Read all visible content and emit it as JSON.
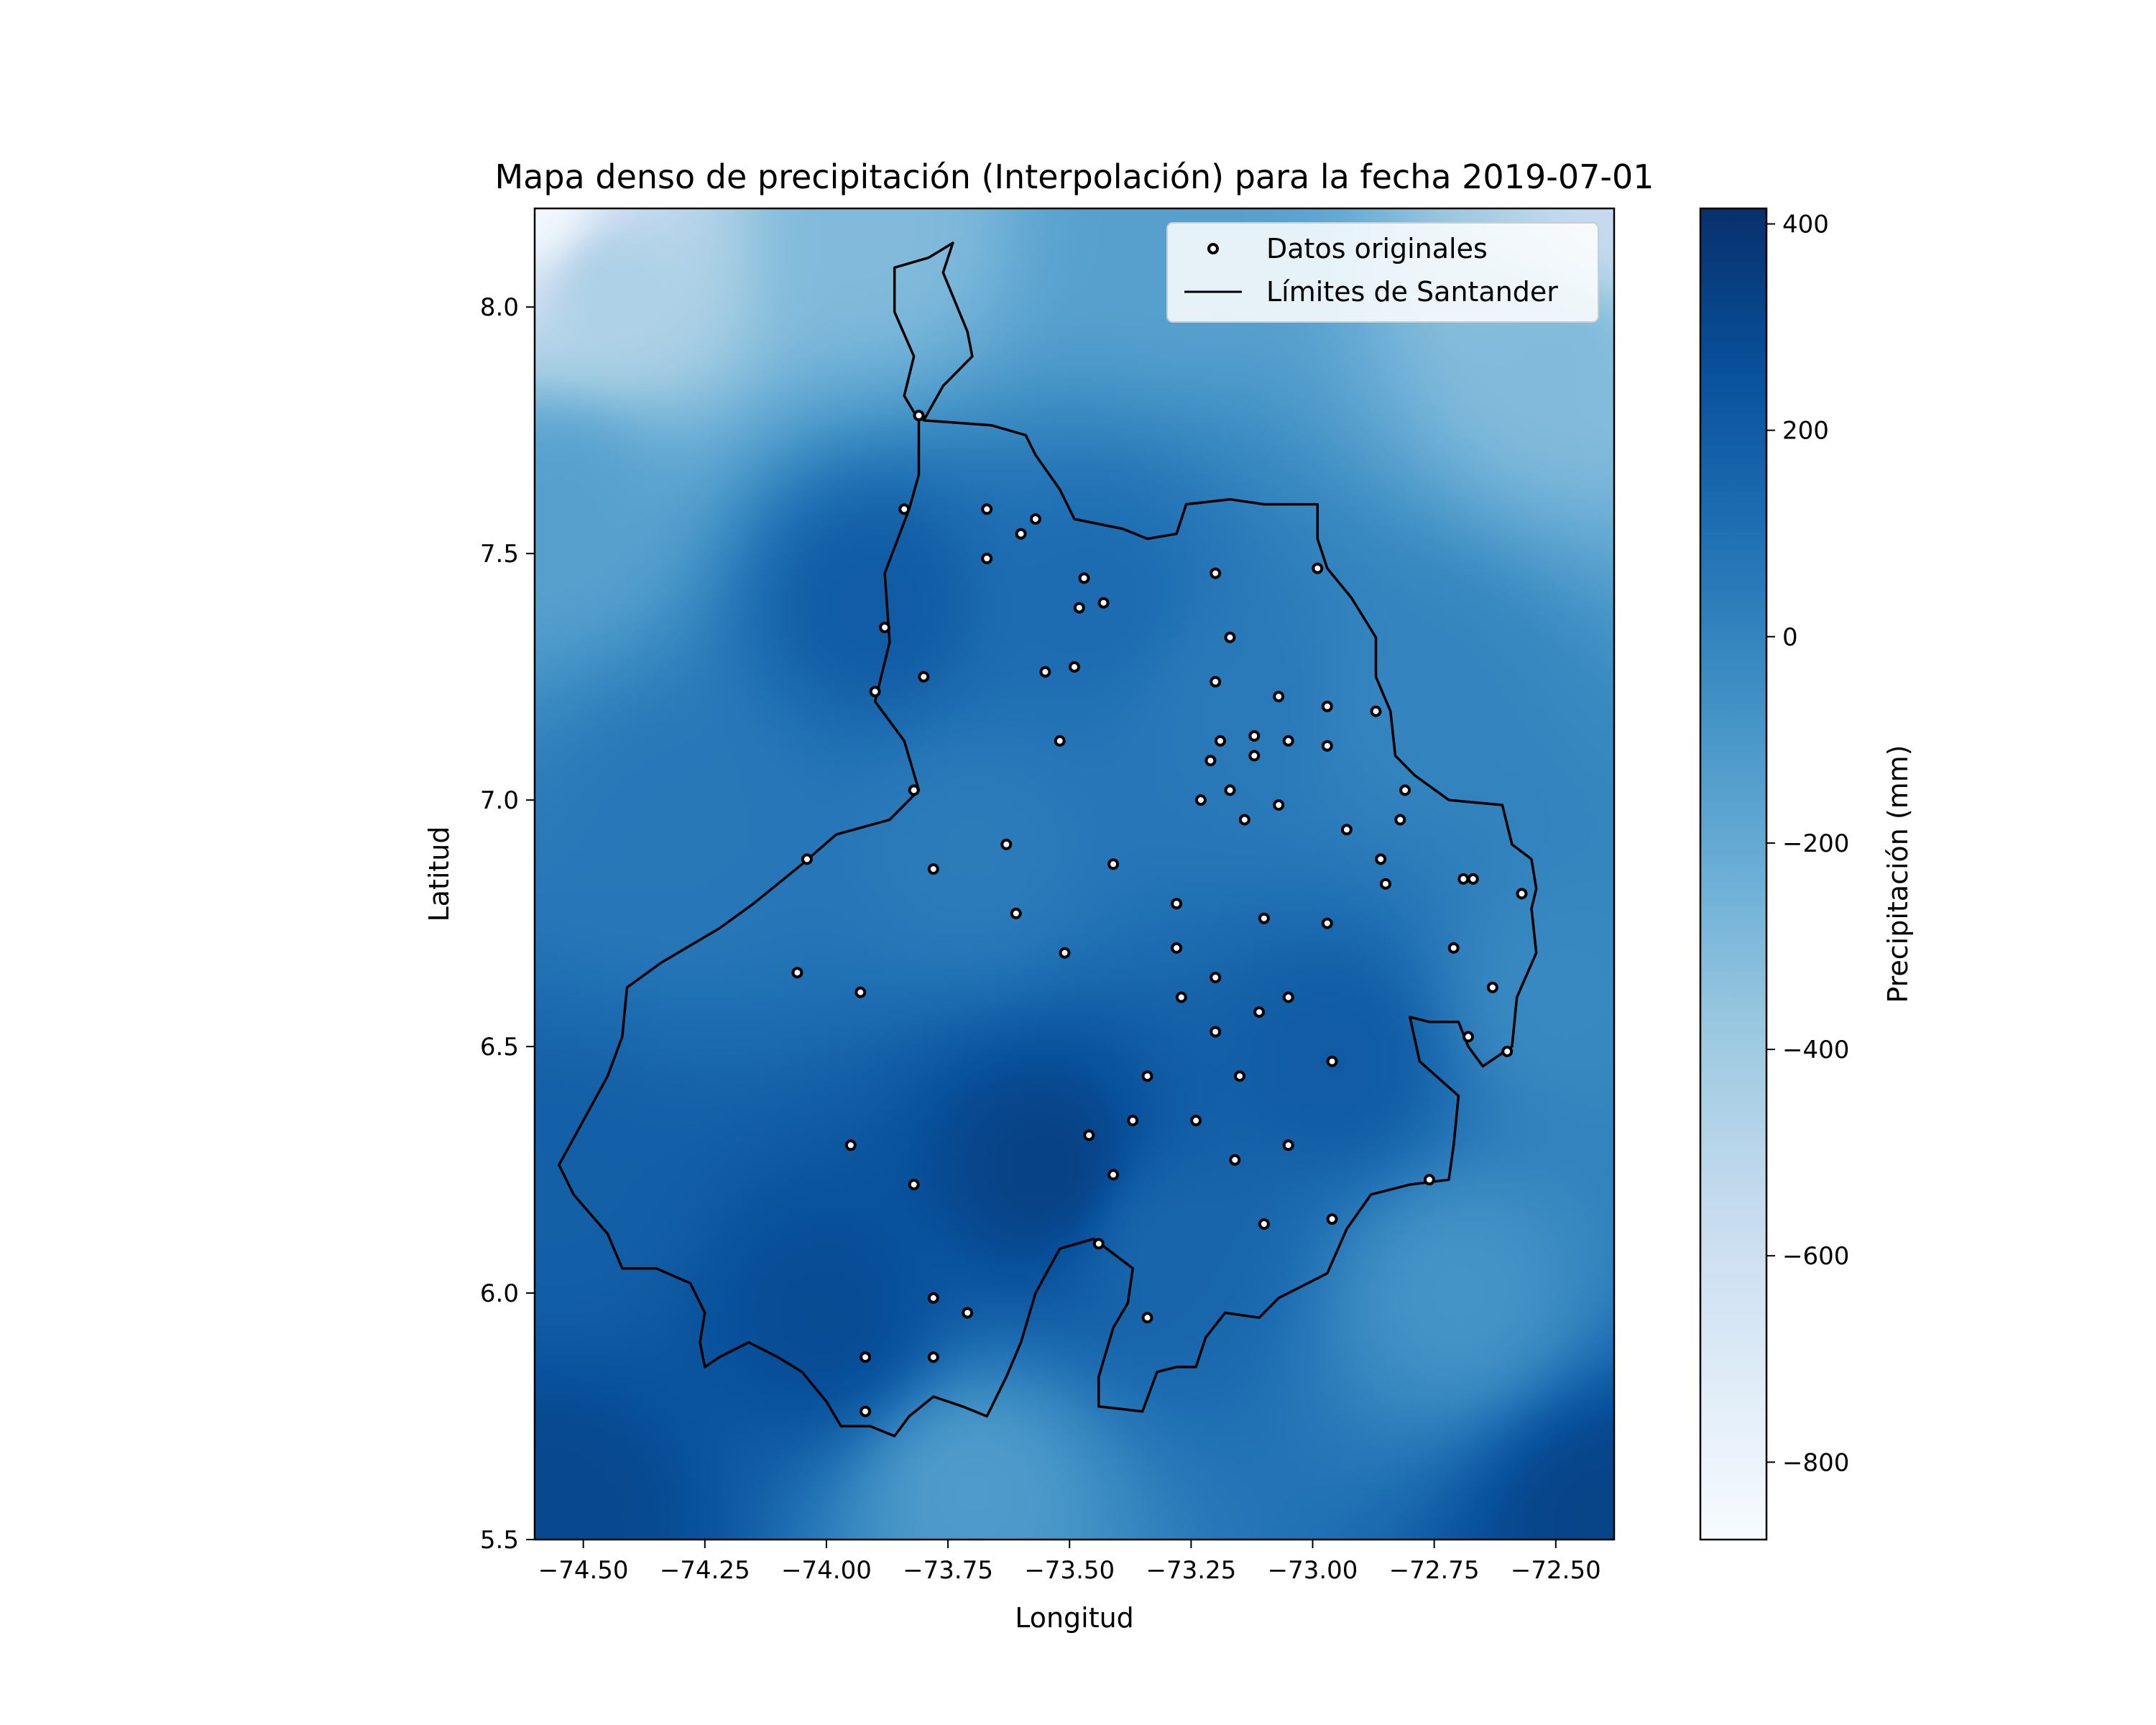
{
  "figure": {
    "title": "Mapa denso de precipitación (Interpolación) para la fecha 2019-07-01",
    "xlabel": "Longitud",
    "ylabel": "Latitud"
  },
  "legend": {
    "items": [
      {
        "label": "Datos originales",
        "marker": "circle-open"
      },
      {
        "label": "Límites de Santander",
        "marker": "line"
      }
    ]
  },
  "colorbar": {
    "label": "Precipitación (mm)",
    "min": -875,
    "max": 415,
    "ticks": [
      400,
      200,
      0,
      -200,
      -400,
      -600,
      -800
    ],
    "tick_labels": [
      "400",
      "200",
      "0",
      "−200",
      "−400",
      "−600",
      "−800"
    ],
    "cmap": [
      "#f7fbff",
      "#deebf7",
      "#c6dbef",
      "#9ecae1",
      "#6baed6",
      "#4292c6",
      "#2171b5",
      "#08519c",
      "#08306b"
    ]
  },
  "chart_data": {
    "type": "heatmap",
    "title": "Mapa denso de precipitación (Interpolación) para la fecha 2019-07-01",
    "xlabel": "Longitud",
    "ylabel": "Latitud",
    "xlim": [
      -74.6,
      -72.38
    ],
    "ylim": [
      5.5,
      8.2
    ],
    "xticks": [
      -74.5,
      -74.25,
      -74.0,
      -73.75,
      -73.5,
      -73.25,
      -73.0,
      -72.75,
      -72.5
    ],
    "xtick_labels": [
      "−74.50",
      "−74.25",
      "−74.00",
      "−73.75",
      "−73.50",
      "−73.25",
      "−73.00",
      "−72.75",
      "−72.50"
    ],
    "yticks": [
      5.5,
      6.0,
      6.5,
      7.0,
      7.5,
      8.0
    ],
    "ytick_labels": [
      "5.5",
      "6.0",
      "6.5",
      "7.0",
      "7.5",
      "8.0"
    ],
    "interpolated_field": {
      "description_units": "mm",
      "samples": [
        {
          "lon": -74.6,
          "lat": 8.2,
          "value": -850
        },
        {
          "lon": -74.45,
          "lat": 8.05,
          "value": -450
        },
        {
          "lon": -73.9,
          "lat": 8.15,
          "value": -300
        },
        {
          "lon": -73.3,
          "lat": 8.15,
          "value": -150
        },
        {
          "lon": -72.38,
          "lat": 8.2,
          "value": -550
        },
        {
          "lon": -72.5,
          "lat": 7.9,
          "value": -300
        },
        {
          "lon": -74.55,
          "lat": 7.6,
          "value": -150
        },
        {
          "lon": -73.9,
          "lat": 7.4,
          "value": 200
        },
        {
          "lon": -73.45,
          "lat": 7.4,
          "value": 120
        },
        {
          "lon": -73.15,
          "lat": 7.2,
          "value": 50
        },
        {
          "lon": -72.8,
          "lat": 7.2,
          "value": 0
        },
        {
          "lon": -74.3,
          "lat": 6.95,
          "value": 60
        },
        {
          "lon": -73.7,
          "lat": 6.9,
          "value": 40
        },
        {
          "lon": -72.95,
          "lat": 6.47,
          "value": 200
        },
        {
          "lon": -72.5,
          "lat": 6.6,
          "value": -20
        },
        {
          "lon": -73.55,
          "lat": 6.25,
          "value": 330
        },
        {
          "lon": -74.0,
          "lat": 5.95,
          "value": 280
        },
        {
          "lon": -74.55,
          "lat": 6.2,
          "value": 180
        },
        {
          "lon": -73.3,
          "lat": 6.1,
          "value": 150
        },
        {
          "lon": -72.7,
          "lat": 6.0,
          "value": -80
        },
        {
          "lon": -73.7,
          "lat": 5.6,
          "value": -120
        },
        {
          "lon": -74.55,
          "lat": 5.55,
          "value": 300
        },
        {
          "lon": -72.4,
          "lat": 5.55,
          "value": 320
        }
      ]
    },
    "series": [
      {
        "name": "Datos originales",
        "type": "scatter",
        "points": [
          [
            -73.81,
            7.78
          ],
          [
            -73.84,
            7.59
          ],
          [
            -73.67,
            7.59
          ],
          [
            -73.57,
            7.57
          ],
          [
            -73.6,
            7.54
          ],
          [
            -73.67,
            7.49
          ],
          [
            -73.47,
            7.45
          ],
          [
            -73.43,
            7.4
          ],
          [
            -73.48,
            7.39
          ],
          [
            -73.88,
            7.35
          ],
          [
            -73.2,
            7.46
          ],
          [
            -72.99,
            7.47
          ],
          [
            -73.17,
            7.33
          ],
          [
            -73.55,
            7.26
          ],
          [
            -73.49,
            7.27
          ],
          [
            -73.8,
            7.25
          ],
          [
            -73.9,
            7.22
          ],
          [
            -73.2,
            7.24
          ],
          [
            -73.07,
            7.21
          ],
          [
            -72.97,
            7.19
          ],
          [
            -72.87,
            7.18
          ],
          [
            -73.52,
            7.12
          ],
          [
            -73.19,
            7.12
          ],
          [
            -73.12,
            7.13
          ],
          [
            -73.05,
            7.12
          ],
          [
            -72.97,
            7.11
          ],
          [
            -73.21,
            7.08
          ],
          [
            -73.12,
            7.09
          ],
          [
            -73.17,
            7.02
          ],
          [
            -73.82,
            7.02
          ],
          [
            -72.81,
            7.02
          ],
          [
            -73.23,
            7.0
          ],
          [
            -73.07,
            6.99
          ],
          [
            -73.14,
            6.96
          ],
          [
            -72.82,
            6.96
          ],
          [
            -72.93,
            6.94
          ],
          [
            -73.63,
            6.91
          ],
          [
            -74.04,
            6.88
          ],
          [
            -73.41,
            6.87
          ],
          [
            -72.86,
            6.88
          ],
          [
            -73.78,
            6.86
          ],
          [
            -72.69,
            6.84
          ],
          [
            -72.67,
            6.84
          ],
          [
            -72.85,
            6.83
          ],
          [
            -72.57,
            6.81
          ],
          [
            -73.28,
            6.79
          ],
          [
            -73.61,
            6.77
          ],
          [
            -73.1,
            6.76
          ],
          [
            -72.97,
            6.75
          ],
          [
            -73.28,
            6.7
          ],
          [
            -73.51,
            6.69
          ],
          [
            -72.71,
            6.7
          ],
          [
            -74.06,
            6.65
          ],
          [
            -73.2,
            6.64
          ],
          [
            -73.93,
            6.61
          ],
          [
            -72.63,
            6.62
          ],
          [
            -73.27,
            6.6
          ],
          [
            -73.05,
            6.6
          ],
          [
            -73.11,
            6.57
          ],
          [
            -73.2,
            6.53
          ],
          [
            -72.68,
            6.52
          ],
          [
            -72.6,
            6.49
          ],
          [
            -72.96,
            6.47
          ],
          [
            -73.34,
            6.44
          ],
          [
            -73.15,
            6.44
          ],
          [
            -73.37,
            6.35
          ],
          [
            -73.24,
            6.35
          ],
          [
            -73.46,
            6.32
          ],
          [
            -73.95,
            6.3
          ],
          [
            -73.05,
            6.3
          ],
          [
            -73.16,
            6.27
          ],
          [
            -73.41,
            6.24
          ],
          [
            -73.82,
            6.22
          ],
          [
            -72.76,
            6.23
          ],
          [
            -72.96,
            6.15
          ],
          [
            -73.1,
            6.14
          ],
          [
            -73.44,
            6.1
          ],
          [
            -73.78,
            5.99
          ],
          [
            -73.71,
            5.96
          ],
          [
            -73.34,
            5.95
          ],
          [
            -73.92,
            5.87
          ],
          [
            -73.78,
            5.87
          ],
          [
            -73.92,
            5.76
          ]
        ]
      },
      {
        "name": "Límites de Santander",
        "type": "line",
        "points": [
          [
            -73.79,
            8.1
          ],
          [
            -73.74,
            8.13
          ],
          [
            -73.76,
            8.07
          ],
          [
            -73.71,
            7.95
          ],
          [
            -73.7,
            7.9
          ],
          [
            -73.76,
            7.84
          ],
          [
            -73.8,
            7.77
          ],
          [
            -73.66,
            7.76
          ],
          [
            -73.59,
            7.74
          ],
          [
            -73.57,
            7.7
          ],
          [
            -73.52,
            7.63
          ],
          [
            -73.49,
            7.57
          ],
          [
            -73.44,
            7.56
          ],
          [
            -73.39,
            7.55
          ],
          [
            -73.34,
            7.53
          ],
          [
            -73.28,
            7.54
          ],
          [
            -73.26,
            7.6
          ],
          [
            -73.17,
            7.61
          ],
          [
            -73.1,
            7.6
          ],
          [
            -73.06,
            7.6
          ],
          [
            -72.99,
            7.6
          ],
          [
            -72.99,
            7.53
          ],
          [
            -72.97,
            7.47
          ],
          [
            -72.92,
            7.41
          ],
          [
            -72.87,
            7.33
          ],
          [
            -72.87,
            7.25
          ],
          [
            -72.84,
            7.18
          ],
          [
            -72.83,
            7.09
          ],
          [
            -72.79,
            7.05
          ],
          [
            -72.72,
            7.0
          ],
          [
            -72.61,
            6.99
          ],
          [
            -72.59,
            6.91
          ],
          [
            -72.55,
            6.88
          ],
          [
            -72.54,
            6.82
          ],
          [
            -72.55,
            6.78
          ],
          [
            -72.54,
            6.69
          ],
          [
            -72.58,
            6.6
          ],
          [
            -72.59,
            6.5
          ],
          [
            -72.65,
            6.46
          ],
          [
            -72.68,
            6.5
          ],
          [
            -72.7,
            6.55
          ],
          [
            -72.76,
            6.55
          ],
          [
            -72.8,
            6.56
          ],
          [
            -72.78,
            6.47
          ],
          [
            -72.7,
            6.4
          ],
          [
            -72.71,
            6.3
          ],
          [
            -72.72,
            6.23
          ],
          [
            -72.8,
            6.22
          ],
          [
            -72.88,
            6.2
          ],
          [
            -72.93,
            6.13
          ],
          [
            -72.97,
            6.04
          ],
          [
            -73.07,
            5.99
          ],
          [
            -73.11,
            5.95
          ],
          [
            -73.18,
            5.96
          ],
          [
            -73.22,
            5.91
          ],
          [
            -73.24,
            5.85
          ],
          [
            -73.28,
            5.85
          ],
          [
            -73.32,
            5.84
          ],
          [
            -73.35,
            5.76
          ],
          [
            -73.44,
            5.77
          ],
          [
            -73.44,
            5.83
          ],
          [
            -73.41,
            5.93
          ],
          [
            -73.38,
            5.98
          ],
          [
            -73.37,
            6.05
          ],
          [
            -73.45,
            6.11
          ],
          [
            -73.52,
            6.09
          ],
          [
            -73.57,
            6.0
          ],
          [
            -73.6,
            5.9
          ],
          [
            -73.63,
            5.83
          ],
          [
            -73.67,
            5.75
          ],
          [
            -73.72,
            5.77
          ],
          [
            -73.78,
            5.79
          ],
          [
            -73.83,
            5.75
          ],
          [
            -73.86,
            5.71
          ],
          [
            -73.91,
            5.73
          ],
          [
            -73.97,
            5.73
          ],
          [
            -74.0,
            5.78
          ],
          [
            -74.05,
            5.84
          ],
          [
            -74.1,
            5.87
          ],
          [
            -74.16,
            5.9
          ],
          [
            -74.22,
            5.87
          ],
          [
            -74.25,
            5.85
          ],
          [
            -74.26,
            5.9
          ],
          [
            -74.25,
            5.96
          ],
          [
            -74.28,
            6.02
          ],
          [
            -74.35,
            6.05
          ],
          [
            -74.42,
            6.05
          ],
          [
            -74.45,
            6.12
          ],
          [
            -74.52,
            6.2
          ],
          [
            -74.55,
            6.26
          ],
          [
            -74.5,
            6.35
          ],
          [
            -74.45,
            6.44
          ],
          [
            -74.42,
            6.52
          ],
          [
            -74.41,
            6.62
          ],
          [
            -74.34,
            6.67
          ],
          [
            -74.22,
            6.74
          ],
          [
            -74.15,
            6.79
          ],
          [
            -74.05,
            6.87
          ],
          [
            -73.98,
            6.93
          ],
          [
            -73.87,
            6.96
          ],
          [
            -73.81,
            7.02
          ],
          [
            -73.84,
            7.12
          ],
          [
            -73.9,
            7.2
          ],
          [
            -73.87,
            7.32
          ],
          [
            -73.88,
            7.46
          ],
          [
            -73.83,
            7.59
          ],
          [
            -73.81,
            7.66
          ],
          [
            -73.81,
            7.77
          ],
          [
            -73.84,
            7.82
          ],
          [
            -73.82,
            7.9
          ],
          [
            -73.86,
            7.99
          ],
          [
            -73.86,
            8.08
          ],
          [
            -73.79,
            8.1
          ]
        ]
      }
    ],
    "legend_position": "upper right",
    "grid": false
  }
}
